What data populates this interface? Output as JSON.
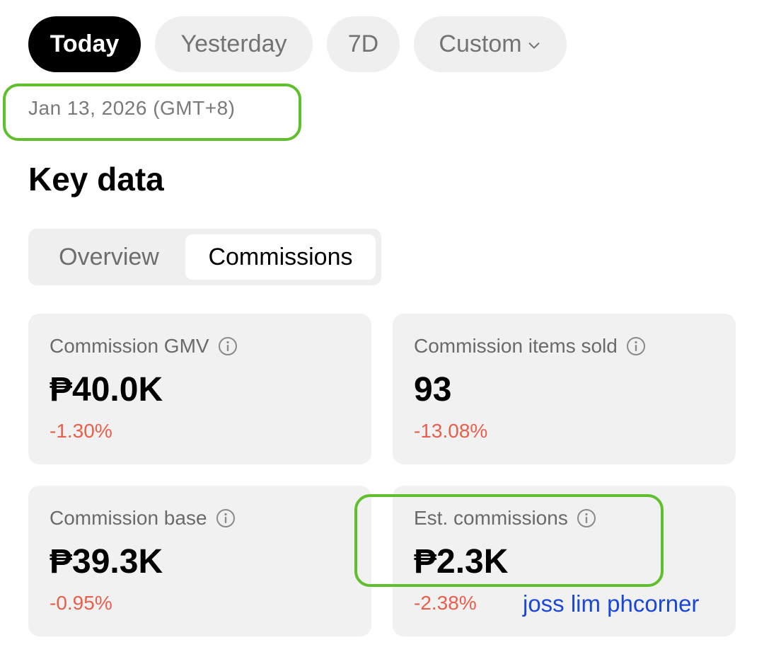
{
  "filters": {
    "today": "Today",
    "yesterday": "Yesterday",
    "seven_days": "7D",
    "custom": "Custom",
    "active": "Today"
  },
  "date_label": "Jan 13, 2026 (GMT+8)",
  "section_title": "Key data",
  "tabs": {
    "overview": "Overview",
    "commissions": "Commissions",
    "active": "Commissions"
  },
  "cards": [
    {
      "label": "Commission GMV",
      "value": "₱40.0K",
      "change": "-1.30%"
    },
    {
      "label": "Commission items sold",
      "value": "93",
      "change": "-13.08%"
    },
    {
      "label": "Commission base",
      "value": "₱39.3K",
      "change": "-0.95%"
    },
    {
      "label": "Est. commissions",
      "value": "₱2.3K",
      "change": "-2.38%"
    }
  ],
  "watermark": "joss lim phcorner",
  "colors": {
    "negative_change": "#e8604c",
    "highlight": "#5fbf2c",
    "watermark": "#1a47d6",
    "active_pill": "#000000"
  },
  "icons": {
    "dropdown": "chevron-down-icon",
    "info": "info-icon"
  }
}
